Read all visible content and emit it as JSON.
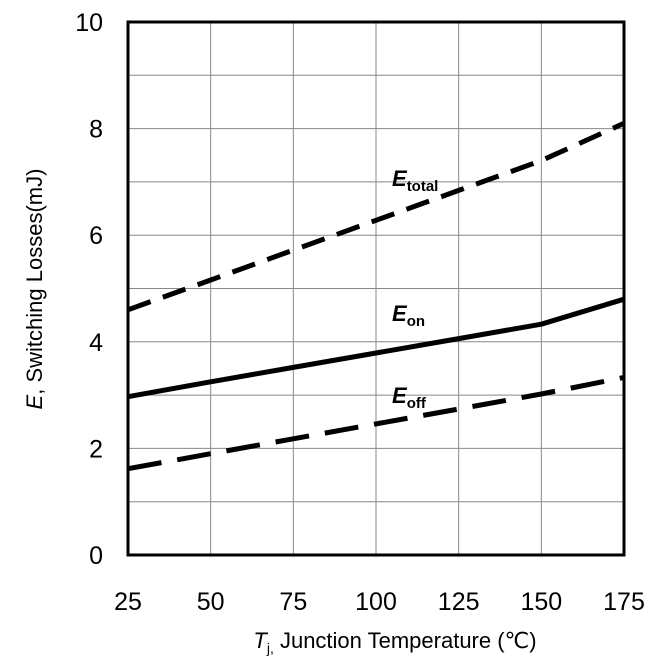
{
  "chart_data": {
    "type": "line",
    "xlabel": {
      "italic_part": "T",
      "subscript": "j,",
      "rest": " Junction Temperature (℃)"
    },
    "ylabel": {
      "italic_part": "E",
      "rest": ", Switching Losses(mJ)"
    },
    "xlim": [
      25,
      175
    ],
    "ylim": [
      0,
      10
    ],
    "xticks": [
      25,
      50,
      75,
      100,
      125,
      150,
      175
    ],
    "yticks": [
      0,
      2,
      4,
      6,
      8,
      10
    ],
    "grid": true,
    "series": [
      {
        "name": "E_on",
        "label_main": "E",
        "label_sub": "on",
        "style": "solid",
        "x": [
          25,
          50,
          75,
          100,
          125,
          150,
          175
        ],
        "y": [
          2.97,
          3.25,
          3.52,
          3.79,
          4.06,
          4.33,
          4.8
        ]
      },
      {
        "name": "E_off",
        "label_main": "E",
        "label_sub": "off",
        "style": "long-dash",
        "x": [
          25,
          50,
          75,
          100,
          125,
          150,
          175
        ],
        "y": [
          1.62,
          1.9,
          2.18,
          2.46,
          2.74,
          3.02,
          3.33
        ]
      },
      {
        "name": "E_total",
        "label_main": "E",
        "label_sub": "total",
        "style": "dash",
        "x": [
          25,
          50,
          75,
          100,
          125,
          150,
          175
        ],
        "y": [
          4.6,
          5.16,
          5.72,
          6.28,
          6.84,
          7.4,
          8.1
        ]
      }
    ]
  }
}
